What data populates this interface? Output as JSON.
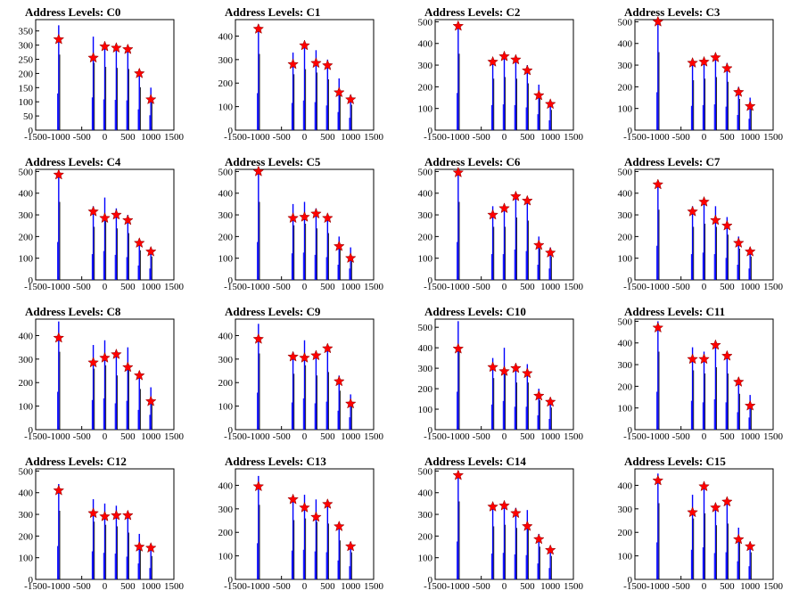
{
  "chart_data": [
    {
      "type": "bar",
      "title": "Address Levels: C0",
      "ylim": [
        0,
        390
      ],
      "yticks": [
        0,
        50,
        100,
        150,
        200,
        250,
        300,
        350
      ],
      "xlim": [
        -1500,
        1500
      ],
      "xticklabels": [
        "-1500",
        "-1000",
        "-500",
        "0",
        "500",
        "1000",
        "1500"
      ],
      "peaks": [
        {
          "x": -1000,
          "height": 370,
          "marker": 320
        },
        {
          "x": -250,
          "height": 330,
          "marker": 255
        },
        {
          "x": 0,
          "height": 310,
          "marker": 295
        },
        {
          "x": 250,
          "height": 305,
          "marker": 290
        },
        {
          "x": 500,
          "height": 300,
          "marker": 285
        },
        {
          "x": 750,
          "height": 210,
          "marker": 200
        },
        {
          "x": 1000,
          "height": 150,
          "marker": 108
        }
      ]
    },
    {
      "type": "bar",
      "title": "Address Levels: C1",
      "ylim": [
        0,
        470
      ],
      "yticks": [
        0,
        100,
        200,
        300,
        400
      ],
      "xlim": [
        -1500,
        1500
      ],
      "xticklabels": [
        "-1500",
        "-1000",
        "-500",
        "0",
        "500",
        "1000",
        "1500"
      ],
      "peaks": [
        {
          "x": -1000,
          "height": 450,
          "marker": 430
        },
        {
          "x": -250,
          "height": 330,
          "marker": 280
        },
        {
          "x": 0,
          "height": 360,
          "marker": 360
        },
        {
          "x": 250,
          "height": 340,
          "marker": 285
        },
        {
          "x": 500,
          "height": 300,
          "marker": 275
        },
        {
          "x": 750,
          "height": 220,
          "marker": 160
        },
        {
          "x": 1000,
          "height": 150,
          "marker": 130
        }
      ]
    },
    {
      "type": "bar",
      "title": "Address Levels: C2",
      "ylim": [
        0,
        510
      ],
      "yticks": [
        0,
        100,
        200,
        300,
        400,
        500
      ],
      "xlim": [
        -1500,
        1500
      ],
      "xticklabels": [
        "-1500",
        "-1000",
        "-500",
        "0",
        "500",
        "1000",
        "1500"
      ],
      "peaks": [
        {
          "x": -1000,
          "height": 490,
          "marker": 480
        },
        {
          "x": -250,
          "height": 330,
          "marker": 315
        },
        {
          "x": 0,
          "height": 340,
          "marker": 340
        },
        {
          "x": 250,
          "height": 330,
          "marker": 325
        },
        {
          "x": 500,
          "height": 300,
          "marker": 275
        },
        {
          "x": 750,
          "height": 210,
          "marker": 160
        },
        {
          "x": 1000,
          "height": 130,
          "marker": 120
        }
      ]
    },
    {
      "type": "bar",
      "title": "Address Levels: C3",
      "ylim": [
        0,
        510
      ],
      "yticks": [
        0,
        100,
        200,
        300,
        400,
        500
      ],
      "xlim": [
        -1500,
        1500
      ],
      "xticklabels": [
        "-1500",
        "-1000",
        "-500",
        "0",
        "500",
        "1000",
        "1500"
      ],
      "peaks": [
        {
          "x": -1000,
          "height": 500,
          "marker": 500
        },
        {
          "x": -250,
          "height": 320,
          "marker": 310
        },
        {
          "x": 0,
          "height": 330,
          "marker": 315
        },
        {
          "x": 250,
          "height": 340,
          "marker": 335
        },
        {
          "x": 500,
          "height": 310,
          "marker": 285
        },
        {
          "x": 750,
          "height": 200,
          "marker": 175
        },
        {
          "x": 1000,
          "height": 150,
          "marker": 110
        }
      ]
    },
    {
      "type": "bar",
      "title": "Address Levels: C4",
      "ylim": [
        0,
        510
      ],
      "yticks": [
        0,
        100,
        200,
        300,
        400,
        500
      ],
      "xlim": [
        -1500,
        1500
      ],
      "xticklabels": [
        "-1500",
        "-1000",
        "-500",
        "0",
        "500",
        "1000",
        "1500"
      ],
      "peaks": [
        {
          "x": -1000,
          "height": 500,
          "marker": 485
        },
        {
          "x": -250,
          "height": 340,
          "marker": 315
        },
        {
          "x": 0,
          "height": 380,
          "marker": 285
        },
        {
          "x": 250,
          "height": 330,
          "marker": 300
        },
        {
          "x": 500,
          "height": 300,
          "marker": 275
        },
        {
          "x": 750,
          "height": 190,
          "marker": 170
        },
        {
          "x": 1000,
          "height": 150,
          "marker": 130
        }
      ]
    },
    {
      "type": "bar",
      "title": "Address Levels: C5",
      "ylim": [
        0,
        510
      ],
      "yticks": [
        0,
        100,
        200,
        300,
        400,
        500
      ],
      "xlim": [
        -1500,
        1500
      ],
      "xticklabels": [
        "-1500",
        "-1000",
        "-500",
        "0",
        "500",
        "1000",
        "1500"
      ],
      "peaks": [
        {
          "x": -1000,
          "height": 500,
          "marker": 500
        },
        {
          "x": -250,
          "height": 350,
          "marker": 285
        },
        {
          "x": 0,
          "height": 360,
          "marker": 290
        },
        {
          "x": 250,
          "height": 330,
          "marker": 305
        },
        {
          "x": 500,
          "height": 300,
          "marker": 285
        },
        {
          "x": 750,
          "height": 200,
          "marker": 155
        },
        {
          "x": 1000,
          "height": 150,
          "marker": 100
        }
      ]
    },
    {
      "type": "bar",
      "title": "Address Levels: C6",
      "ylim": [
        0,
        510
      ],
      "yticks": [
        0,
        100,
        200,
        300,
        400,
        500
      ],
      "xlim": [
        -1500,
        1500
      ],
      "xticklabels": [
        "-1500",
        "-1000",
        "-500",
        "0",
        "500",
        "1000",
        "1500"
      ],
      "peaks": [
        {
          "x": -1000,
          "height": 500,
          "marker": 495
        },
        {
          "x": -250,
          "height": 340,
          "marker": 300
        },
        {
          "x": 0,
          "height": 340,
          "marker": 330
        },
        {
          "x": 250,
          "height": 400,
          "marker": 385
        },
        {
          "x": 500,
          "height": 380,
          "marker": 365
        },
        {
          "x": 750,
          "height": 200,
          "marker": 160
        },
        {
          "x": 1000,
          "height": 150,
          "marker": 125
        }
      ]
    },
    {
      "type": "bar",
      "title": "Address Levels: C7",
      "ylim": [
        0,
        510
      ],
      "yticks": [
        0,
        100,
        200,
        300,
        400,
        500
      ],
      "xlim": [
        -1500,
        1500
      ],
      "xticklabels": [
        "-1500",
        "-1000",
        "-500",
        "0",
        "500",
        "1000",
        "1500"
      ],
      "peaks": [
        {
          "x": -1000,
          "height": 450,
          "marker": 440
        },
        {
          "x": -250,
          "height": 340,
          "marker": 315
        },
        {
          "x": 0,
          "height": 360,
          "marker": 360
        },
        {
          "x": 250,
          "height": 340,
          "marker": 275
        },
        {
          "x": 500,
          "height": 290,
          "marker": 250
        },
        {
          "x": 750,
          "height": 200,
          "marker": 170
        },
        {
          "x": 1000,
          "height": 150,
          "marker": 130
        }
      ]
    },
    {
      "type": "bar",
      "title": "Address Levels: C8",
      "ylim": [
        0,
        470
      ],
      "yticks": [
        0,
        100,
        200,
        300,
        400
      ],
      "xlim": [
        -1500,
        1500
      ],
      "xticklabels": [
        "-1500",
        "-1000",
        "-500",
        "0",
        "500",
        "1000",
        "1500"
      ],
      "peaks": [
        {
          "x": -1000,
          "height": 460,
          "marker": 390
        },
        {
          "x": -250,
          "height": 360,
          "marker": 285
        },
        {
          "x": 0,
          "height": 380,
          "marker": 305
        },
        {
          "x": 250,
          "height": 320,
          "marker": 320
        },
        {
          "x": 500,
          "height": 350,
          "marker": 265
        },
        {
          "x": 750,
          "height": 240,
          "marker": 230
        },
        {
          "x": 1000,
          "height": 180,
          "marker": 120
        }
      ]
    },
    {
      "type": "bar",
      "title": "Address Levels: C9",
      "ylim": [
        0,
        470
      ],
      "yticks": [
        0,
        100,
        200,
        300,
        400
      ],
      "xlim": [
        -1500,
        1500
      ],
      "xticklabels": [
        "-1500",
        "-1000",
        "-500",
        "0",
        "500",
        "1000",
        "1500"
      ],
      "peaks": [
        {
          "x": -1000,
          "height": 450,
          "marker": 385
        },
        {
          "x": -250,
          "height": 330,
          "marker": 310
        },
        {
          "x": 0,
          "height": 380,
          "marker": 305
        },
        {
          "x": 250,
          "height": 320,
          "marker": 315
        },
        {
          "x": 500,
          "height": 340,
          "marker": 345
        },
        {
          "x": 750,
          "height": 230,
          "marker": 205
        },
        {
          "x": 1000,
          "height": 150,
          "marker": 110
        }
      ]
    },
    {
      "type": "bar",
      "title": "Address Levels: C10",
      "ylim": [
        0,
        540
      ],
      "yticks": [
        0,
        100,
        200,
        300,
        400,
        500
      ],
      "xlim": [
        -1500,
        1500
      ],
      "xticklabels": [
        "-1500",
        "-1000",
        "-500",
        "0",
        "500",
        "1000",
        "1500"
      ],
      "peaks": [
        {
          "x": -1000,
          "height": 530,
          "marker": 395
        },
        {
          "x": -250,
          "height": 350,
          "marker": 305
        },
        {
          "x": 0,
          "height": 400,
          "marker": 285
        },
        {
          "x": 250,
          "height": 320,
          "marker": 300
        },
        {
          "x": 500,
          "height": 320,
          "marker": 275
        },
        {
          "x": 750,
          "height": 200,
          "marker": 165
        },
        {
          "x": 1000,
          "height": 150,
          "marker": 135
        }
      ]
    },
    {
      "type": "bar",
      "title": "Address Levels: C11",
      "ylim": [
        0,
        510
      ],
      "yticks": [
        0,
        100,
        200,
        300,
        400,
        500
      ],
      "xlim": [
        -1500,
        1500
      ],
      "xticklabels": [
        "-1500",
        "-1000",
        "-500",
        "0",
        "500",
        "1000",
        "1500"
      ],
      "peaks": [
        {
          "x": -1000,
          "height": 500,
          "marker": 470
        },
        {
          "x": -250,
          "height": 380,
          "marker": 325
        },
        {
          "x": 0,
          "height": 360,
          "marker": 325
        },
        {
          "x": 250,
          "height": 400,
          "marker": 390
        },
        {
          "x": 500,
          "height": 360,
          "marker": 340
        },
        {
          "x": 750,
          "height": 230,
          "marker": 220
        },
        {
          "x": 1000,
          "height": 160,
          "marker": 110
        }
      ]
    },
    {
      "type": "bar",
      "title": "Address Levels: C12",
      "ylim": [
        0,
        510
      ],
      "yticks": [
        0,
        100,
        200,
        300,
        400,
        500
      ],
      "xlim": [
        -1500,
        1500
      ],
      "xticklabels": [
        "-1500",
        "-1000",
        "-500",
        "0",
        "500",
        "1000",
        "1500"
      ],
      "peaks": [
        {
          "x": -1000,
          "height": 440,
          "marker": 410
        },
        {
          "x": -250,
          "height": 370,
          "marker": 305
        },
        {
          "x": 0,
          "height": 350,
          "marker": 290
        },
        {
          "x": 250,
          "height": 340,
          "marker": 295
        },
        {
          "x": 500,
          "height": 300,
          "marker": 295
        },
        {
          "x": 750,
          "height": 210,
          "marker": 150
        },
        {
          "x": 1000,
          "height": 150,
          "marker": 145
        }
      ]
    },
    {
      "type": "bar",
      "title": "Address Levels: C13",
      "ylim": [
        0,
        470
      ],
      "yticks": [
        0,
        100,
        200,
        300,
        400
      ],
      "xlim": [
        -1500,
        1500
      ],
      "xticklabels": [
        "-1500",
        "-1000",
        "-500",
        "0",
        "500",
        "1000",
        "1500"
      ],
      "peaks": [
        {
          "x": -1000,
          "height": 440,
          "marker": 395
        },
        {
          "x": -250,
          "height": 350,
          "marker": 340
        },
        {
          "x": 0,
          "height": 360,
          "marker": 305
        },
        {
          "x": 250,
          "height": 340,
          "marker": 265
        },
        {
          "x": 500,
          "height": 330,
          "marker": 320
        },
        {
          "x": 750,
          "height": 230,
          "marker": 225
        },
        {
          "x": 1000,
          "height": 160,
          "marker": 140
        }
      ]
    },
    {
      "type": "bar",
      "title": "Address Levels: C14",
      "ylim": [
        0,
        510
      ],
      "yticks": [
        0,
        100,
        200,
        300,
        400,
        500
      ],
      "xlim": [
        -1500,
        1500
      ],
      "xticklabels": [
        "-1500",
        "-1000",
        "-500",
        "0",
        "500",
        "1000",
        "1500"
      ],
      "peaks": [
        {
          "x": -1000,
          "height": 500,
          "marker": 480
        },
        {
          "x": -250,
          "height": 340,
          "marker": 335
        },
        {
          "x": 0,
          "height": 350,
          "marker": 340
        },
        {
          "x": 250,
          "height": 330,
          "marker": 305
        },
        {
          "x": 500,
          "height": 320,
          "marker": 245
        },
        {
          "x": 750,
          "height": 210,
          "marker": 185
        },
        {
          "x": 1000,
          "height": 150,
          "marker": 135
        }
      ]
    },
    {
      "type": "bar",
      "title": "Address Levels: C15",
      "ylim": [
        0,
        470
      ],
      "yticks": [
        0,
        100,
        200,
        300,
        400
      ],
      "xlim": [
        -1500,
        1500
      ],
      "xticklabels": [
        "-1500",
        "-1000",
        "-500",
        "0",
        "500",
        "1000",
        "1500"
      ],
      "peaks": [
        {
          "x": -1000,
          "height": 450,
          "marker": 420
        },
        {
          "x": -250,
          "height": 360,
          "marker": 285
        },
        {
          "x": 0,
          "height": 390,
          "marker": 395
        },
        {
          "x": 250,
          "height": 320,
          "marker": 305
        },
        {
          "x": 500,
          "height": 330,
          "marker": 330
        },
        {
          "x": 750,
          "height": 220,
          "marker": 170
        },
        {
          "x": 1000,
          "height": 160,
          "marker": 140
        }
      ]
    }
  ],
  "colors": {
    "bar": "#0000ff",
    "bar_spike": "#000000",
    "marker_fill": "#ff0000",
    "marker_stroke": "#880000",
    "axis": "#000000"
  }
}
